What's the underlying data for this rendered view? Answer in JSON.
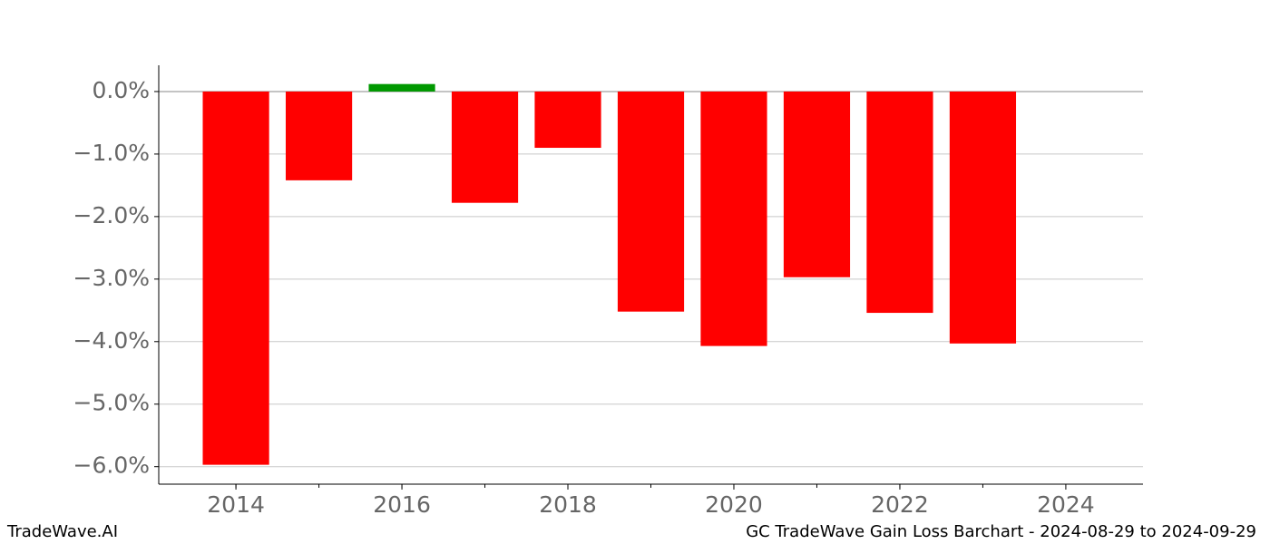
{
  "chart_data": {
    "type": "bar",
    "x": [
      2014,
      2015,
      2016,
      2017,
      2018,
      2019,
      2020,
      2021,
      2022,
      2023
    ],
    "values": [
      -5.97,
      -1.42,
      0.12,
      -1.78,
      -0.9,
      -3.52,
      -4.07,
      -2.97,
      -3.54,
      -4.03
    ],
    "colors": [
      "#ff0000",
      "#ff0000",
      "#009900",
      "#ff0000",
      "#ff0000",
      "#ff0000",
      "#ff0000",
      "#ff0000",
      "#ff0000",
      "#ff0000"
    ],
    "bar_width": 0.8,
    "xlim": [
      2013.07,
      2024.93
    ],
    "xticks": [
      2014,
      2016,
      2018,
      2020,
      2022,
      2024
    ],
    "ylim": [
      -6.28,
      0.42
    ],
    "yticks": [
      {
        "value": 0,
        "label": "0.0%"
      },
      {
        "value": -1,
        "label": "−1.0%"
      },
      {
        "value": -2,
        "label": "−2.0%"
      },
      {
        "value": -3,
        "label": "−3.0%"
      },
      {
        "value": -4,
        "label": "−4.0%"
      },
      {
        "value": -5,
        "label": "−5.0%"
      },
      {
        "value": -6,
        "label": "−6.0%"
      }
    ],
    "grid": true,
    "footer_left": "TradeWave.AI",
    "footer_right": "GC TradeWave Gain Loss Barchart - 2024-08-29 to 2024-09-29"
  }
}
